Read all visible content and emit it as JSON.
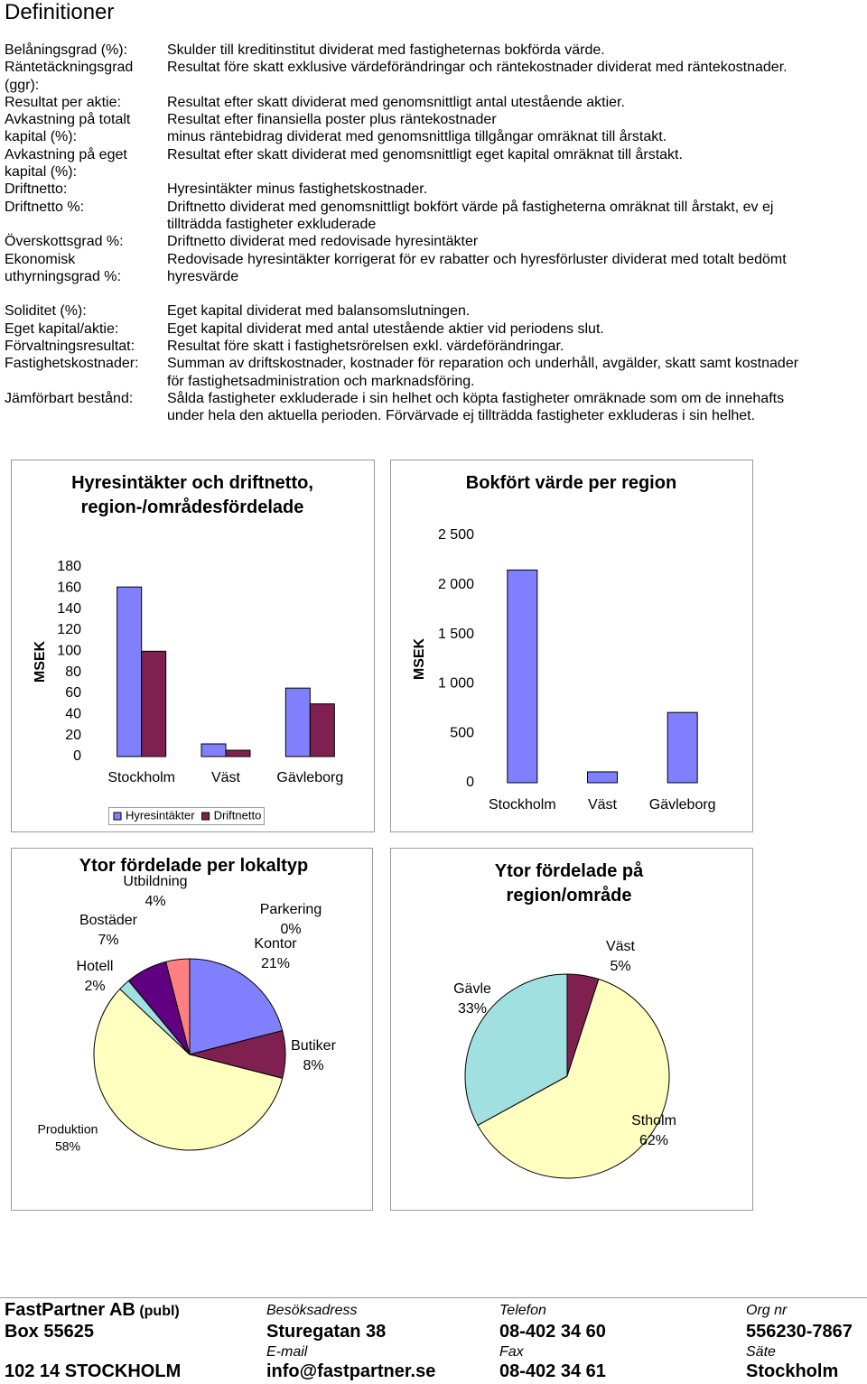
{
  "title": "Definitioner",
  "definitions": [
    {
      "term": "Belåningsgrad (%):",
      "text": [
        "Skulder till kreditinstitut dividerat med fastigheternas bokförda värde."
      ]
    },
    {
      "term": "Räntetäckningsgrad (ggr):",
      "text": [
        "Resultat före skatt exklusive värdeförändringar och räntekostnader dividerat med räntekostnader."
      ]
    },
    {
      "term": "Resultat per aktie:",
      "text": [
        "Resultat efter skatt dividerat med genomsnittligt antal utestående aktier."
      ]
    },
    {
      "term": "Avkastning på totalt kapital (%):",
      "text": [
        "Resultat efter finansiella poster plus räntekostnader",
        "minus räntebidrag dividerat med genomsnittliga tillgångar omräknat till årstakt."
      ]
    },
    {
      "term": "Avkastning på eget kapital (%):",
      "text": [
        "Resultat efter skatt dividerat med genomsnittligt eget kapital omräknat till årstakt."
      ]
    },
    {
      "term": "Driftnetto:",
      "text": [
        "Hyresintäkter minus fastighetskostnader."
      ]
    },
    {
      "term": "Driftnetto %:",
      "text": [
        "Driftnetto dividerat med genomsnittligt bokfört värde på fastigheterna omräknat till årstakt, ev ej",
        "tillträdda fastigheter exkluderade"
      ]
    },
    {
      "term": "Överskottsgrad %:",
      "text": [
        "Driftnetto dividerat med redovisade hyresintäkter"
      ]
    },
    {
      "term": "Ekonomisk uthyrningsgrad %:",
      "text": [
        "Redovisade hyresintäkter korrigerat för ev rabatter och hyresförluster dividerat med totalt bedömt",
        "hyresvärde"
      ]
    },
    {
      "term": "Soliditet (%):",
      "text": [
        "Eget kapital dividerat med balansomslutningen."
      ]
    },
    {
      "term": "Eget kapital/aktie:",
      "text": [
        "Eget kapital dividerat med antal utestående aktier vid periodens slut."
      ]
    },
    {
      "term": "Förvaltningsresultat:",
      "text": [
        "Resultat före skatt i fastighetsrörelsen exkl. värdeförändringar."
      ]
    },
    {
      "term": "Fastighetskostnader:",
      "text": [
        "Summan av driftskostnader, kostnader för reparation och underhåll, avgälder, skatt samt kostnader",
        "för fastighetsadministration och marknadsföring."
      ]
    },
    {
      "term": "Jämförbart bestånd:",
      "text": [
        "Sålda fastigheter exkluderade i sin helhet och köpta fastigheter omräknade som om de innehafts",
        "under hela den aktuella perioden. Förvärvade ej tillträdda fastigheter exkluderas i sin helhet."
      ]
    }
  ],
  "chart_data": [
    {
      "type": "bar",
      "title": "Hyresintäkter och driftnetto, region-/områdesfördelade",
      "ylabel": "MSEK",
      "categories": [
        "Stockholm",
        "Väst",
        "Gävleborg"
      ],
      "series": [
        {
          "name": "Hyresintäkter",
          "color": "#8080ff",
          "values": [
            161,
            12,
            65
          ]
        },
        {
          "name": "Driftnetto",
          "color": "#802050",
          "values": [
            100,
            6,
            50
          ]
        }
      ],
      "ylim": [
        0,
        180
      ],
      "yticks": [
        0,
        20,
        40,
        60,
        80,
        100,
        120,
        140,
        160,
        180
      ],
      "legend": "bottom"
    },
    {
      "type": "bar",
      "title": "Bokfört värde per region",
      "ylabel": "MSEK",
      "categories": [
        "Stockholm",
        "Väst",
        "Gävleborg"
      ],
      "values": [
        2150,
        110,
        710
      ],
      "color": "#8080ff",
      "ylim": [
        0,
        2500
      ],
      "yticks": [
        0,
        500,
        {
          "value": 1000,
          "label": "1 000"
        },
        {
          "value": 1500,
          "label": "1 500"
        },
        {
          "value": 2000,
          "label": "2 000"
        },
        {
          "value": 2500,
          "label": "2 500"
        }
      ]
    },
    {
      "type": "pie",
      "title": "Ytor fördelade per lokaltyp",
      "categories": [
        "Kontor",
        "Butiker",
        "Produktion",
        "Hotell",
        "Bostäder",
        "Utbildning",
        "Parkering"
      ],
      "values": [
        21,
        8,
        58,
        2,
        7,
        4,
        0
      ],
      "value_labels": [
        "21%",
        "8%",
        "58%",
        "2%",
        "7%",
        "4%",
        "0%"
      ],
      "colors": [
        "#8080ff",
        "#802050",
        "#ffffc0",
        "#a0e0e0",
        "#600080",
        "#ff8080",
        "#0066cc"
      ]
    },
    {
      "type": "pie",
      "title": "Ytor fördelade på region/område",
      "categories": [
        "Väst",
        "Stholm",
        "Gävle"
      ],
      "values": [
        5,
        62,
        33
      ],
      "value_labels": [
        "5%",
        "62%",
        "33%"
      ],
      "colors": [
        "#802050",
        "#ffffc0",
        "#a0e0e0"
      ]
    }
  ],
  "footer": {
    "company": "FastPartner AB",
    "company_suffix": "(publ)",
    "box": "Box 55625",
    "city": "102 14 STOCKHOLM",
    "visit_label": "Besöksadress",
    "visit": "Sturegatan 38",
    "email_label": "E-mail",
    "email": "info@fastpartner.se",
    "phone_label": "Telefon",
    "phone": "08-402 34 60",
    "fax_label": "Fax",
    "fax": "08-402 34 61",
    "org_label": "Org nr",
    "org": "556230-7867",
    "seat_label": "Säte",
    "seat": "Stockholm"
  }
}
